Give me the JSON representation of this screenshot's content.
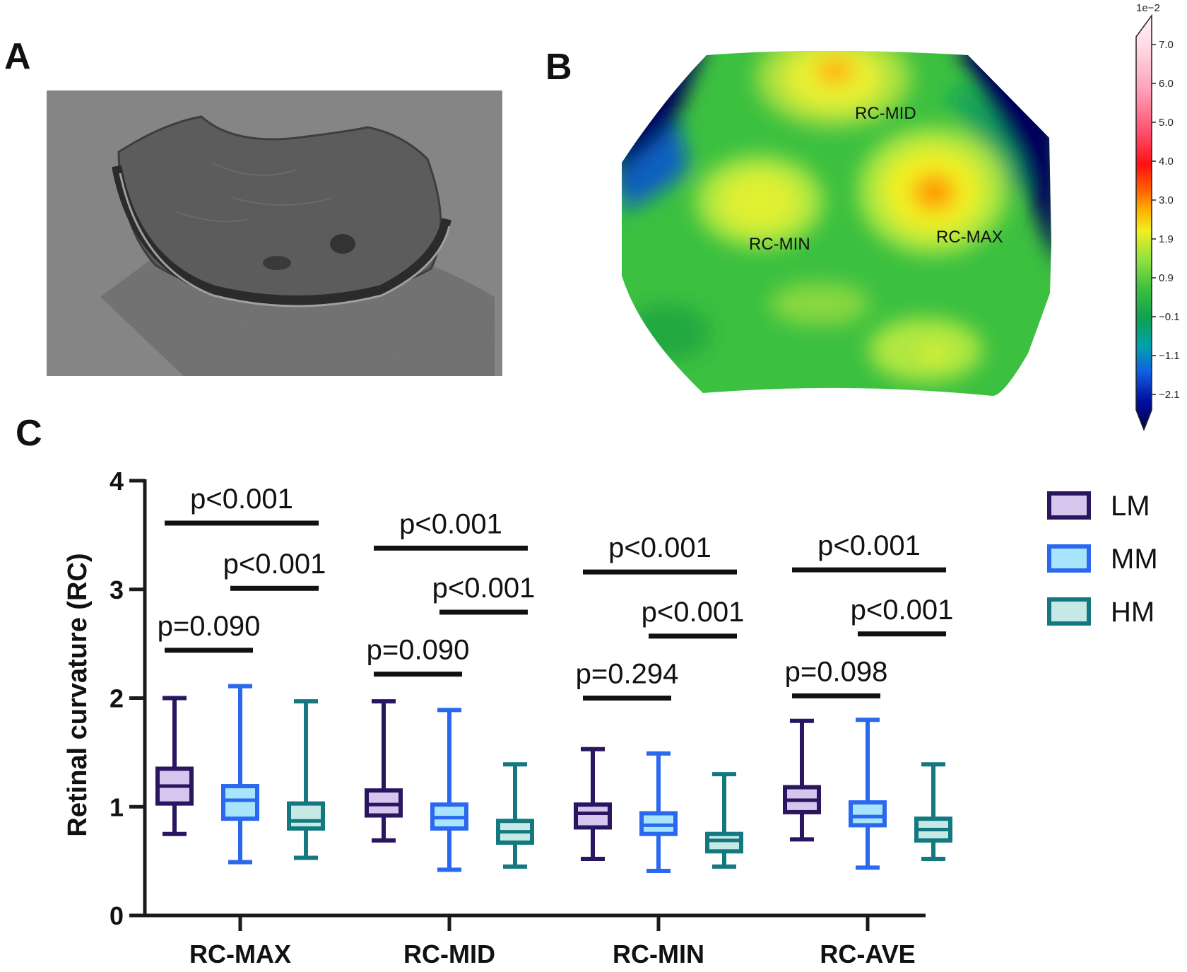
{
  "panels": {
    "a_label": "A",
    "b_label": "B",
    "c_label": "C"
  },
  "panel_b": {
    "annotations": [
      "RC-MID",
      "RC-MIN",
      "RC-MAX"
    ],
    "colorbar": {
      "multiplier": "1e−2",
      "ticks": [
        "7.0",
        "6.0",
        "5.0",
        "4.0",
        "3.0",
        "1.9",
        "0.9",
        "−0.1",
        "−1.1",
        "−2.1"
      ]
    }
  },
  "colors": {
    "LM": "#2a1660",
    "LM_fill": "#d6c6ee",
    "MM": "#2a68f0",
    "MM_fill": "#a8e4fb",
    "HM": "#137880",
    "HM_fill": "#c6e9e6",
    "axis": "#1a1a1a"
  },
  "chart_data": {
    "type": "box",
    "ylabel": "Retinal curvature (RC)",
    "ylim": [
      0,
      4
    ],
    "yticks": [
      "0",
      "1",
      "2",
      "3",
      "4"
    ],
    "categories": [
      "RC-MAX",
      "RC-MID",
      "RC-MIN",
      "RC-AVE"
    ],
    "series": [
      {
        "name": "LM",
        "boxes": [
          {
            "min": 0.75,
            "q1": 1.03,
            "median": 1.19,
            "q3": 1.35,
            "max": 2.0
          },
          {
            "min": 0.69,
            "q1": 0.92,
            "median": 1.02,
            "q3": 1.15,
            "max": 1.97
          },
          {
            "min": 0.52,
            "q1": 0.81,
            "median": 0.94,
            "q3": 1.02,
            "max": 1.53
          },
          {
            "min": 0.7,
            "q1": 0.95,
            "median": 1.06,
            "q3": 1.18,
            "max": 1.79
          }
        ]
      },
      {
        "name": "MM",
        "boxes": [
          {
            "min": 0.49,
            "q1": 0.89,
            "median": 1.06,
            "q3": 1.19,
            "max": 2.11
          },
          {
            "min": 0.42,
            "q1": 0.8,
            "median": 0.9,
            "q3": 1.02,
            "max": 1.89
          },
          {
            "min": 0.41,
            "q1": 0.75,
            "median": 0.83,
            "q3": 0.94,
            "max": 1.49
          },
          {
            "min": 0.44,
            "q1": 0.83,
            "median": 0.91,
            "q3": 1.04,
            "max": 1.8
          }
        ]
      },
      {
        "name": "HM",
        "boxes": [
          {
            "min": 0.53,
            "q1": 0.8,
            "median": 0.87,
            "q3": 1.03,
            "max": 1.97
          },
          {
            "min": 0.45,
            "q1": 0.67,
            "median": 0.77,
            "q3": 0.87,
            "max": 1.39
          },
          {
            "min": 0.45,
            "q1": 0.59,
            "median": 0.69,
            "q3": 0.75,
            "max": 1.3
          },
          {
            "min": 0.52,
            "q1": 0.69,
            "median": 0.79,
            "q3": 0.89,
            "max": 1.39
          }
        ]
      }
    ],
    "comparisons": [
      {
        "category": "RC-MAX",
        "from": "LM",
        "to": "HM",
        "label": "p<0.001",
        "y": 3.61
      },
      {
        "category": "RC-MAX",
        "from": "MM",
        "to": "HM",
        "label": "p<0.001",
        "y": 3.01
      },
      {
        "category": "RC-MAX",
        "from": "LM",
        "to": "MM",
        "label": "p=0.090",
        "y": 2.44
      },
      {
        "category": "RC-MID",
        "from": "LM",
        "to": "HM",
        "label": "p<0.001",
        "y": 3.38
      },
      {
        "category": "RC-MID",
        "from": "MM",
        "to": "HM",
        "label": "p<0.001",
        "y": 2.79
      },
      {
        "category": "RC-MID",
        "from": "LM",
        "to": "MM",
        "label": "p=0.090",
        "y": 2.22
      },
      {
        "category": "RC-MIN",
        "from": "LM",
        "to": "HM",
        "label": "p<0.001",
        "y": 3.16
      },
      {
        "category": "RC-MIN",
        "from": "MM",
        "to": "HM",
        "label": "p<0.001",
        "y": 2.57
      },
      {
        "category": "RC-MIN",
        "from": "LM",
        "to": "MM",
        "label": "p=0.294",
        "y": 2.0
      },
      {
        "category": "RC-AVE",
        "from": "LM",
        "to": "HM",
        "label": "p<0.001",
        "y": 3.18
      },
      {
        "category": "RC-AVE",
        "from": "MM",
        "to": "HM",
        "label": "p<0.001",
        "y": 2.59
      },
      {
        "category": "RC-AVE",
        "from": "LM",
        "to": "MM",
        "label": "p=0.098",
        "y": 2.02
      }
    ],
    "legend": [
      "LM",
      "MM",
      "HM"
    ],
    "legend_position": "right"
  }
}
